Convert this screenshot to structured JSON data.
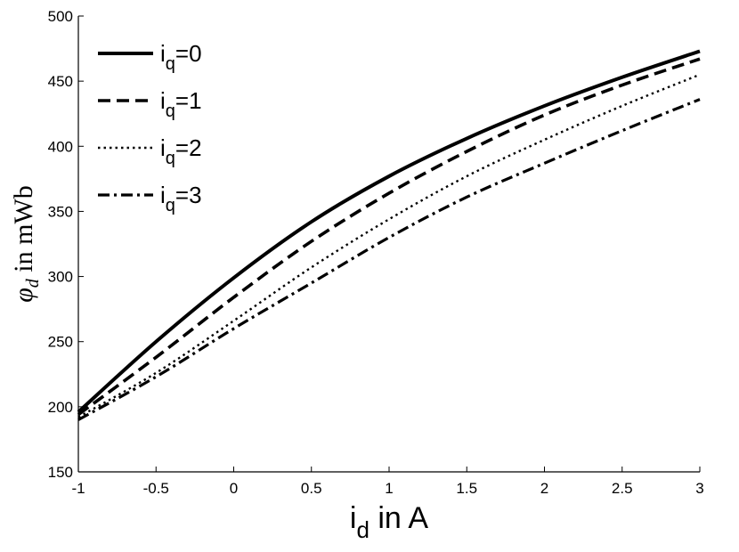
{
  "chart_data": {
    "type": "line",
    "xlim": [
      -1,
      3
    ],
    "ylim": [
      150,
      500
    ],
    "x_ticks": [
      "-1",
      "-0.5",
      "0",
      "0.5",
      "1",
      "1.5",
      "2",
      "2.5",
      "3"
    ],
    "y_ticks": [
      "150",
      "200",
      "250",
      "300",
      "350",
      "400",
      "450",
      "500"
    ],
    "xlabel": {
      "main": "i",
      "sub": "d",
      "rest": " in A"
    },
    "ylabel": {
      "main": "φ",
      "sub": "d",
      "rest": " in mWb"
    },
    "grid": false,
    "legend_position": "top-left",
    "x": [
      -1,
      -0.5,
      0,
      0.5,
      1,
      1.5,
      2,
      2.5,
      3
    ],
    "series": [
      {
        "label_main": "i",
        "label_sub": "q",
        "label_rest": "=0",
        "style": "solid",
        "values": [
          196,
          250,
          299,
          342,
          377,
          406,
          431,
          453,
          473
        ]
      },
      {
        "label_main": "i",
        "label_sub": "q",
        "label_rest": "=1",
        "style": "dashed",
        "values": [
          194,
          238,
          284,
          327,
          364,
          396,
          424,
          447,
          467
        ]
      },
      {
        "label_main": "i",
        "label_sub": "q",
        "label_rest": "=2",
        "style": "dotted",
        "values": [
          192,
          226,
          266,
          307,
          344,
          377,
          405,
          431,
          455
        ]
      },
      {
        "label_main": "i",
        "label_sub": "q",
        "label_rest": "=3",
        "style": "dashdot",
        "values": [
          190,
          223,
          260,
          295,
          330,
          361,
          387,
          412,
          436
        ]
      }
    ]
  }
}
